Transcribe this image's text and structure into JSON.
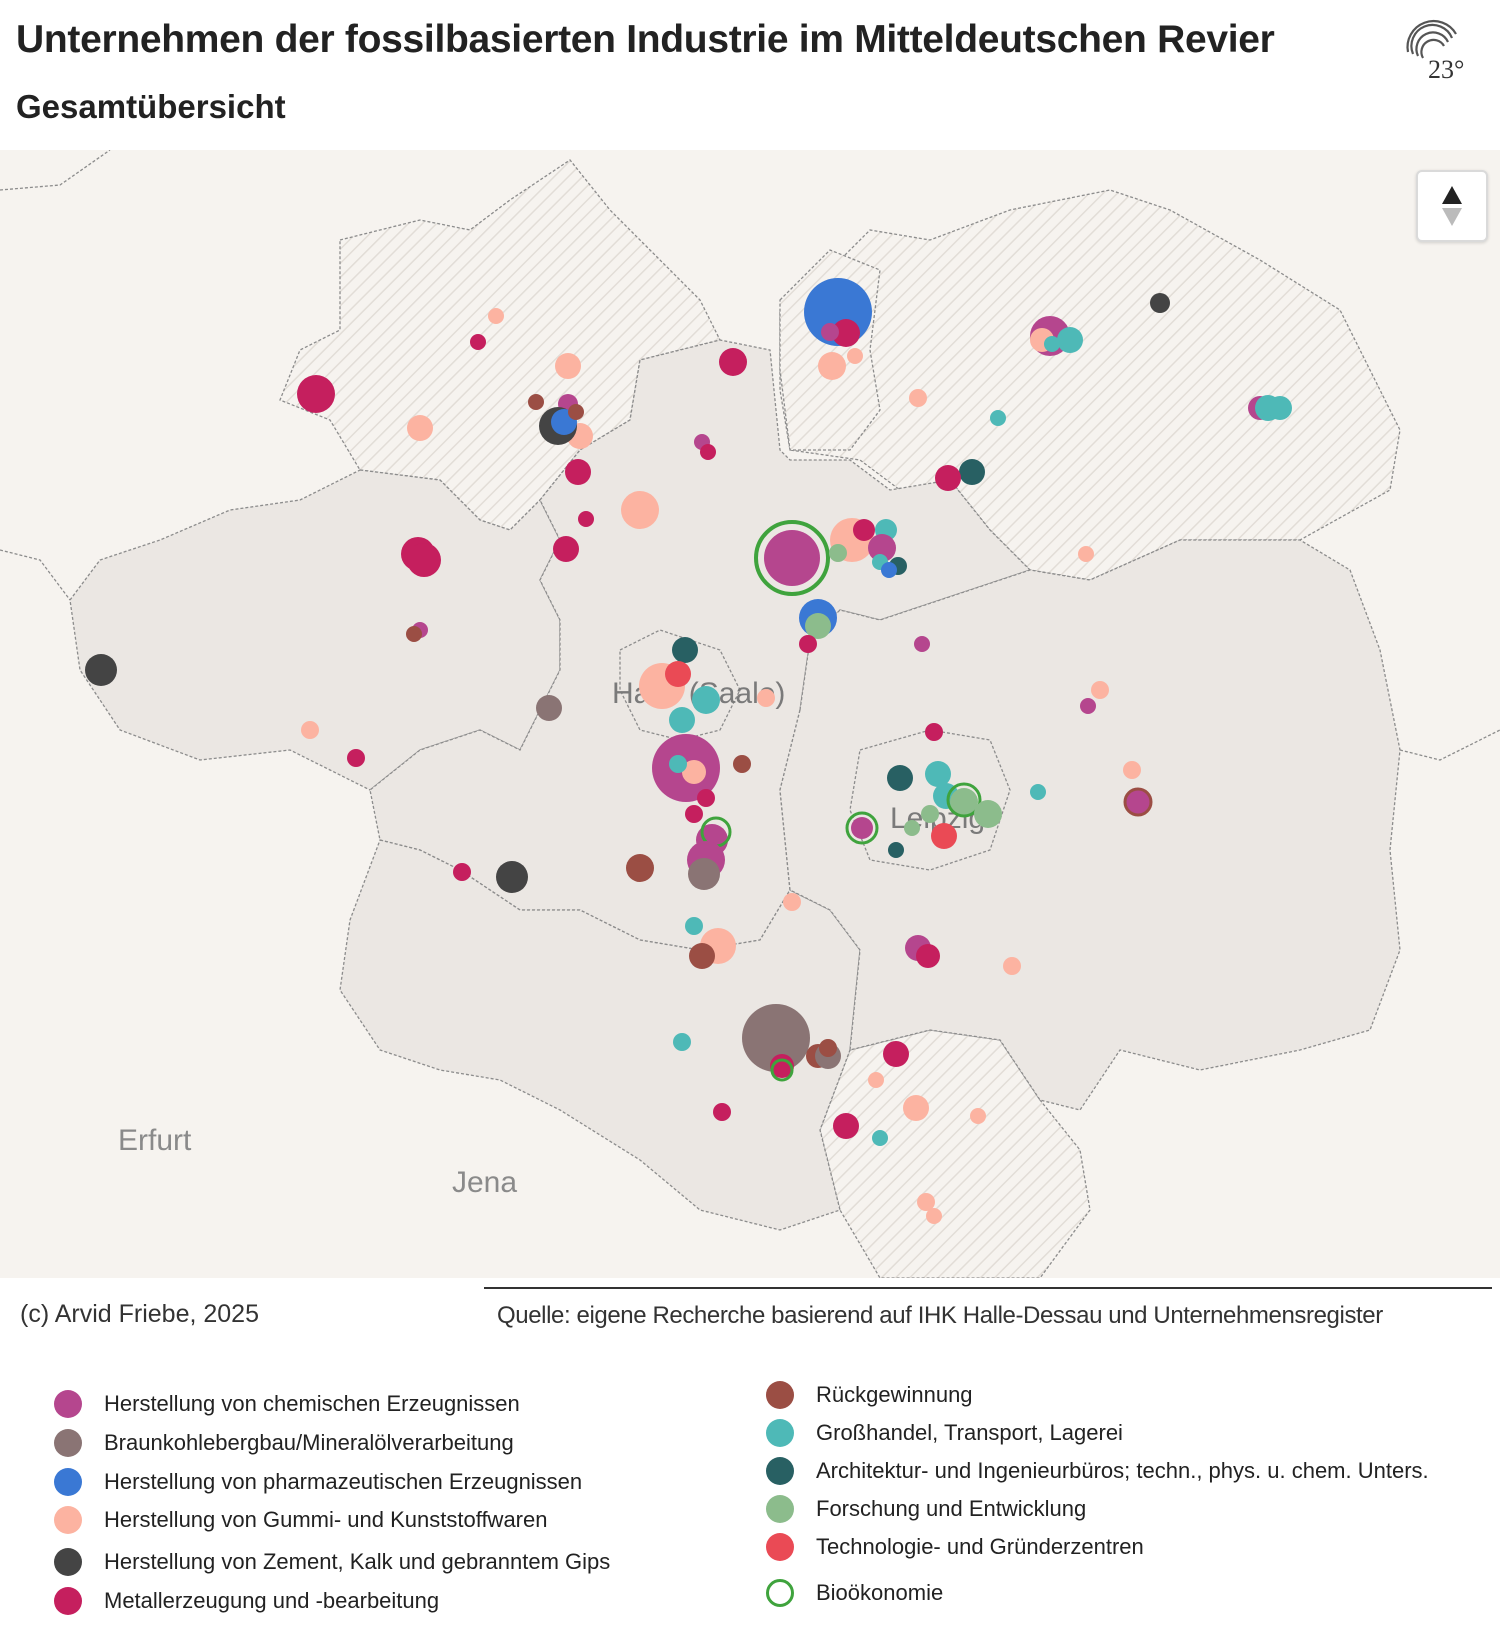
{
  "header": {
    "title": "Unternehmen der fossilbasierten Industrie im Mitteldeutschen Revier",
    "subtitle": "Gesamtübersicht",
    "logo_text": "23°"
  },
  "map": {
    "cities": [
      "Erfurt",
      "Jena",
      "Halle (Saale)",
      "Leipzig"
    ],
    "zoom_reset_icon": "arrow-up-down-icon"
  },
  "footer": {
    "credit": "(c) Arvid Friebe, 2025",
    "source": "Quelle: eigene Recherche basierend auf IHK Halle-Dessau und Unternehmensregister"
  },
  "colors": {
    "chem": "#b5468e",
    "braun": "#8a7474",
    "pharma": "#3a78d4",
    "gummi": "#fcb3a1",
    "zement": "#444444",
    "metall": "#c51f5e",
    "rueck": "#9b4e44",
    "gross": "#4eb9b7",
    "archi": "#286063",
    "forsch": "#8cbc8c",
    "tech": "#ea4a55",
    "bio": "#3fa33d"
  },
  "legend": [
    {
      "key": "chem",
      "label": "Herstellung von chemischen Erzeugnissen"
    },
    {
      "key": "braun",
      "label": "Braunkohlebergbau/Mineralölverarbeitung"
    },
    {
      "key": "pharma",
      "label": "Herstellung von pharmazeutischen Erzeugnissen"
    },
    {
      "key": "gummi",
      "label": "Herstellung von Gummi- und Kunststoffwaren"
    },
    {
      "key": "zement",
      "label": "Herstellung von Zement, Kalk und gebranntem Gips"
    },
    {
      "key": "metall",
      "label": "Metallerzeugung und -bearbeitung"
    },
    {
      "key": "rueck",
      "label": "Rückgewinnung"
    },
    {
      "key": "gross",
      "label": "Großhandel, Transport, Lagerei"
    },
    {
      "key": "archi",
      "label": "Architektur- und Ingenieurbüros; techn., phys. u. chem. Unters."
    },
    {
      "key": "forsch",
      "label": "Forschung und Entwicklung"
    },
    {
      "key": "tech",
      "label": "Technologie- und Gründerzentren"
    },
    {
      "key": "bio",
      "label": "Bioökonomie"
    }
  ]
}
